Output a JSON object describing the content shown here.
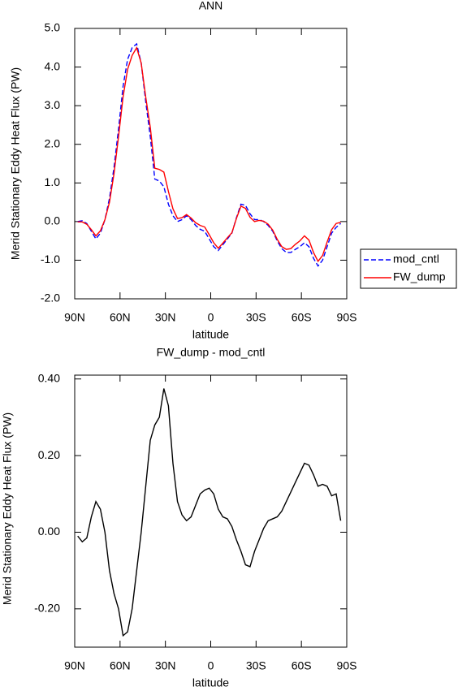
{
  "chart_data": [
    {
      "type": "line",
      "title": "ANN",
      "xlabel": "latitude",
      "ylabel": "Merid Stationary Eddy Heat Flux (PW)",
      "x": [
        88,
        85,
        82,
        79,
        76,
        73,
        70,
        67,
        64,
        61,
        58,
        55,
        52,
        49,
        46,
        43,
        40,
        37,
        34,
        31,
        28,
        25,
        22,
        19,
        16,
        13,
        10,
        7,
        4,
        1,
        -2,
        -5,
        -8,
        -11,
        -14,
        -17,
        -20,
        -23,
        -26,
        -29,
        -32,
        -35,
        -38,
        -41,
        -44,
        -47,
        -50,
        -53,
        -56,
        -59,
        -62,
        -65,
        -68,
        -71,
        -74,
        -77,
        -80,
        -83,
        -86
      ],
      "series": [
        {
          "name": "mod_cntl",
          "color": "#0000ff",
          "linestyle": "dashed",
          "values": [
            0.0,
            0.02,
            -0.05,
            -0.25,
            -0.45,
            -0.3,
            0.05,
            0.6,
            1.4,
            2.4,
            3.5,
            4.2,
            4.5,
            4.6,
            4.1,
            3.1,
            2.2,
            1.1,
            1.05,
            0.9,
            0.45,
            0.15,
            0.0,
            0.05,
            0.15,
            0.05,
            -0.1,
            -0.2,
            -0.25,
            -0.45,
            -0.65,
            -0.75,
            -0.6,
            -0.45,
            -0.3,
            0.1,
            0.45,
            0.42,
            0.2,
            0.05,
            0.05,
            0.0,
            -0.1,
            -0.25,
            -0.5,
            -0.7,
            -0.8,
            -0.8,
            -0.72,
            -0.65,
            -0.55,
            -0.65,
            -0.95,
            -1.15,
            -1.0,
            -0.65,
            -0.3,
            -0.15,
            -0.05
          ]
        },
        {
          "name": "FW_dump",
          "color": "#ff0000",
          "linestyle": "solid",
          "values": [
            -0.01,
            -0.01,
            -0.07,
            -0.21,
            -0.37,
            -0.24,
            0.05,
            0.5,
            1.24,
            2.2,
            3.23,
            3.94,
            4.3,
            4.5,
            4.1,
            3.22,
            2.44,
            1.38,
            1.35,
            1.28,
            0.78,
            0.33,
            0.08,
            0.1,
            0.18,
            0.09,
            -0.03,
            -0.1,
            -0.14,
            -0.34,
            -0.55,
            -0.69,
            -0.56,
            -0.42,
            -0.29,
            0.08,
            0.4,
            0.34,
            0.11,
            0.0,
            0.03,
            0.01,
            -0.07,
            -0.22,
            -0.46,
            -0.65,
            -0.72,
            -0.7,
            -0.59,
            -0.5,
            -0.37,
            -0.48,
            -0.8,
            -1.03,
            -0.88,
            -0.53,
            -0.21,
            -0.05,
            -0.02
          ]
        }
      ],
      "xlim": [
        90,
        -90
      ],
      "xticks": [
        {
          "value": 90,
          "label": "90N"
        },
        {
          "value": 60,
          "label": "60N"
        },
        {
          "value": 30,
          "label": "30N"
        },
        0,
        {
          "value": -30,
          "label": "30S"
        },
        {
          "value": -60,
          "label": "60S"
        },
        {
          "value": -90,
          "label": "90S"
        }
      ],
      "ylim": [
        -2,
        5
      ],
      "yticks": [
        {
          "value": 5,
          "label": "5.0"
        },
        {
          "value": 4,
          "label": "4.0"
        },
        {
          "value": 3,
          "label": "3.0"
        },
        {
          "value": 2,
          "label": "2.0"
        },
        {
          "value": 1,
          "label": "1.0"
        },
        {
          "value": 0,
          "label": "0.0"
        },
        {
          "value": -1,
          "label": "-1.0"
        },
        {
          "value": -2,
          "label": "-2.0"
        }
      ],
      "legend": "right"
    },
    {
      "type": "line",
      "title": "FW_dump - mod_cntl",
      "xlabel": "latitude",
      "ylabel": "Merid Stationary Eddy Heat Flux (PW)",
      "x": [
        88,
        85,
        82,
        79,
        76,
        73,
        70,
        67,
        64,
        61,
        58,
        55,
        52,
        49,
        46,
        43,
        40,
        37,
        34,
        31,
        28,
        25,
        22,
        19,
        16,
        13,
        10,
        7,
        4,
        1,
        -2,
        -5,
        -8,
        -11,
        -14,
        -17,
        -20,
        -23,
        -26,
        -29,
        -32,
        -35,
        -38,
        -41,
        -44,
        -47,
        -50,
        -53,
        -56,
        -59,
        -62,
        -65,
        -68,
        -71,
        -74,
        -77,
        -80,
        -83,
        -86
      ],
      "color": "#000000",
      "values": [
        -0.01,
        -0.025,
        -0.015,
        0.04,
        0.08,
        0.06,
        0.0,
        -0.1,
        -0.16,
        -0.2,
        -0.27,
        -0.26,
        -0.2,
        -0.1,
        0.0,
        0.12,
        0.24,
        0.28,
        0.3,
        0.375,
        0.33,
        0.18,
        0.08,
        0.045,
        0.03,
        0.04,
        0.07,
        0.1,
        0.11,
        0.115,
        0.1,
        0.06,
        0.04,
        0.035,
        0.015,
        -0.02,
        -0.05,
        -0.085,
        -0.09,
        -0.05,
        -0.02,
        0.01,
        0.03,
        0.035,
        0.04,
        0.055,
        0.08,
        0.105,
        0.13,
        0.155,
        0.18,
        0.175,
        0.15,
        0.12,
        0.125,
        0.12,
        0.095,
        0.1,
        0.03
      ],
      "xlim": [
        90,
        -90
      ],
      "xticks": [
        {
          "value": 90,
          "label": "90N"
        },
        {
          "value": 60,
          "label": "60N"
        },
        {
          "value": 30,
          "label": "30N"
        },
        0,
        {
          "value": -30,
          "label": "30S"
        },
        {
          "value": -60,
          "label": "60S"
        },
        {
          "value": -90,
          "label": "90S"
        }
      ],
      "ylim": [
        -0.3,
        0.41
      ],
      "yticks": [
        {
          "value": 0.4,
          "label": "0.40"
        },
        {
          "value": 0.2,
          "label": "0.20"
        },
        {
          "value": 0,
          "label": "0.00"
        },
        {
          "value": -0.2,
          "label": "-0.20"
        }
      ]
    }
  ]
}
